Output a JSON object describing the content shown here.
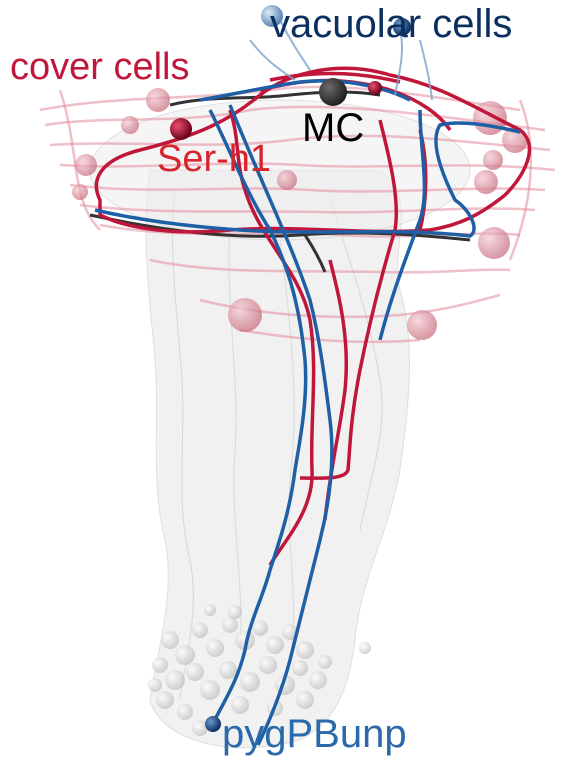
{
  "labels": {
    "vacuolar_cells": "vacuolar cells",
    "cover_cells": "cover cells",
    "mc": "MC",
    "ser_h1": "Ser-h1",
    "pygpbunp": "pygPBunp"
  },
  "colors": {
    "vacuolar_cells": "#0b2f5e",
    "cover_cells": "#c0183a",
    "mc": "#000000",
    "ser_h1": "#d8242c",
    "pygpbunp": "#2a6aaa",
    "neuron_red": "#c0163a",
    "neuron_blue": "#1e5fa6",
    "tissue_gray": "#d7d7d7",
    "cover_fibers": "#e6909e",
    "dark_neuron": "#333333"
  }
}
